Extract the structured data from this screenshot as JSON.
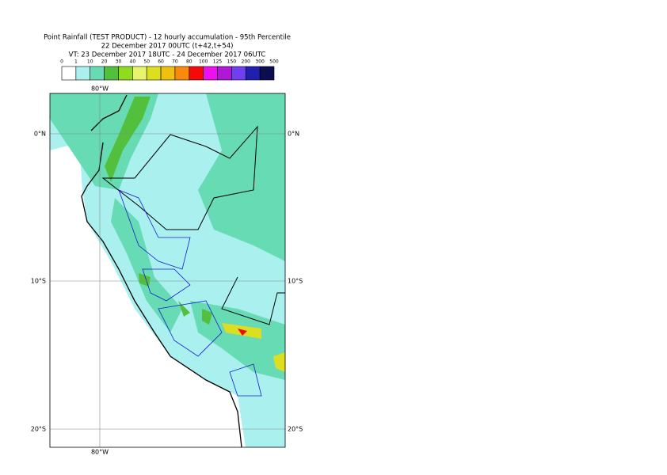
{
  "header": {
    "title": "Point Rainfall (TEST PRODUCT) - 12 hourly accumulation - 95th Percentile",
    "run": "22 December 2017 00UTC (t+42,t+54)",
    "valid": "VT: 23 December 2017 18UTC - 24 December 2017 06UTC"
  },
  "colorbar": {
    "ticks": [
      0,
      1,
      10,
      20,
      30,
      40,
      50,
      60,
      70,
      80,
      100,
      125,
      150,
      200,
      300,
      500
    ],
    "colors": [
      "#ffffff",
      "#a9f0ee",
      "#66dbb4",
      "#52c03c",
      "#8fdc1e",
      "#e7f56c",
      "#dede20",
      "#f0c010",
      "#f88a0c",
      "#f40a0a",
      "#ee10ee",
      "#b018d8",
      "#7040f0",
      "#2020b0",
      "#0c0c50"
    ]
  },
  "map": {
    "lon_top": "80°W",
    "lon_bottom": "80°W",
    "lat_left": [
      "0°N",
      "10°S",
      "20°S"
    ],
    "lat_right": [
      "0°N",
      "10°S",
      "20°S"
    ]
  }
}
